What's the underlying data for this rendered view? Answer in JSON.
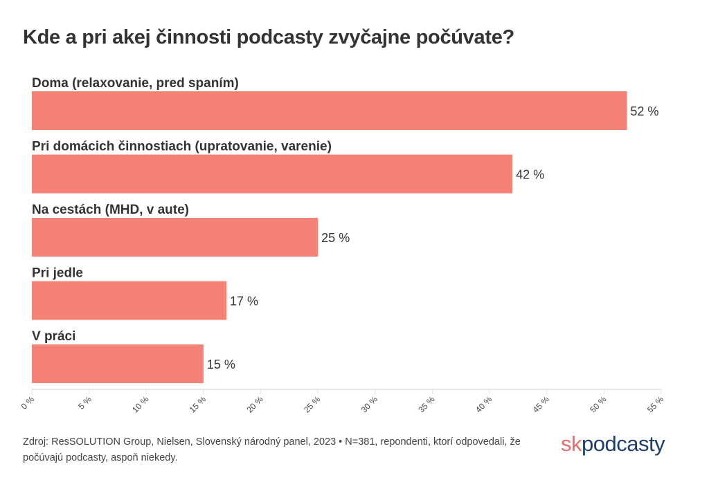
{
  "chart_data": {
    "type": "bar",
    "orientation": "horizontal",
    "title": "Kde a pri akej činnosti podcasty zvyčajne počúvate?",
    "categories": [
      "Doma (relaxovanie, pred spaním)",
      "Pri domácich činnostiach (upratovanie, varenie)",
      "Na cestách (MHD, v aute)",
      "Pri jedle",
      "V práci"
    ],
    "values": [
      52,
      42,
      25,
      17,
      15
    ],
    "value_labels": [
      "52 %",
      "42 %",
      "25 %",
      "17 %",
      "15 %"
    ],
    "xlim": [
      0,
      55
    ],
    "xticks": [
      0,
      5,
      10,
      15,
      20,
      25,
      30,
      35,
      40,
      45,
      50,
      55
    ],
    "xtick_labels": [
      "0 %",
      "5 %",
      "10 %",
      "15 %",
      "20 %",
      "25 %",
      "30 %",
      "35 %",
      "40 %",
      "45 %",
      "50 %",
      "55 %"
    ],
    "bar_color": "#f58276",
    "grid": false,
    "legend": "none"
  },
  "footer": {
    "source": "Zdroj: ResSOLUTION Group, Nielsen, Slovenský národný panel, 2023 • N=381, repondenti, ktorí odpovedali, že počúvajú podcasty, aspoň niekedy."
  },
  "logo": {
    "sk": "sk",
    "podcasty": "podcasty",
    "sk_color": "#ec6a6b",
    "podcasty_color": "#1d3e6e"
  }
}
